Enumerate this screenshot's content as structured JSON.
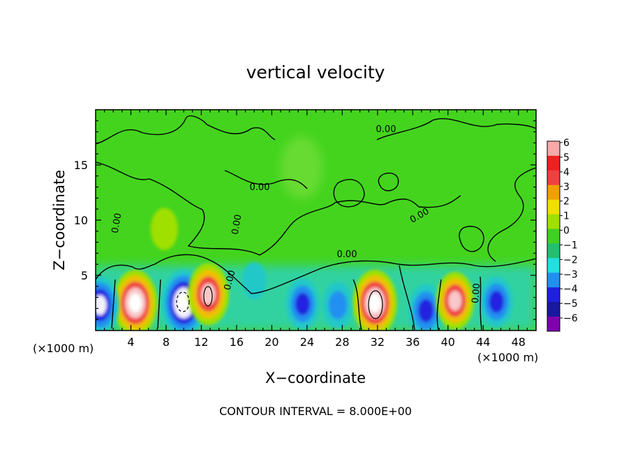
{
  "chart_data": {
    "type": "heatmap",
    "title": "vertical velocity",
    "xlabel": "X−coordinate",
    "ylabel": "Z−coordinate",
    "x_unit_left": "(×1000 m)",
    "x_unit_right": "(×1000 m)",
    "xlim": [
      0,
      50
    ],
    "ylim": [
      0,
      20
    ],
    "xticks": [
      4,
      8,
      12,
      16,
      20,
      24,
      28,
      32,
      36,
      40,
      44,
      48
    ],
    "yticks": [
      5,
      10,
      15
    ],
    "colorbar": {
      "levels": [
        6,
        5,
        4,
        3,
        2,
        1,
        0,
        -1,
        -2,
        -3,
        -4,
        -5,
        -6
      ],
      "labels": [
        "6",
        "5",
        "4",
        "3",
        "2",
        "1",
        "0",
        "−1",
        "−2",
        "−3",
        "−4",
        "−5",
        "−6"
      ],
      "colors": [
        "#f8a8a8",
        "#f02020",
        "#f04040",
        "#f0a000",
        "#f0e000",
        "#a0e000",
        "#40d020",
        "#20c070",
        "#20e0e0",
        "#2090f0",
        "#2020e0",
        "#1818a0",
        "#8000b0"
      ]
    },
    "contour_labels": [
      "0.00",
      "0.00",
      "0.00",
      "0.00",
      "0.00",
      "0.00",
      "0.00",
      "0.00"
    ],
    "footer": "CONTOUR INTERVAL = 8.000E+00",
    "features": [
      {
        "kind": "updraft",
        "x": 4.5,
        "z": 2.5,
        "peak": 8
      },
      {
        "kind": "downdraft",
        "x": 10,
        "z": 2.5,
        "peak": -8
      },
      {
        "kind": "updraft",
        "x": 12.8,
        "z": 3.3,
        "peak": 7
      },
      {
        "kind": "downdraft",
        "x": 0.5,
        "z": 2.3,
        "peak": -6
      },
      {
        "kind": "downdraft",
        "x": 23.5,
        "z": 2.4,
        "peak": -4.5
      },
      {
        "kind": "downdraft",
        "x": 27.5,
        "z": 2.3,
        "peak": -3.5
      },
      {
        "kind": "updraft",
        "x": 31.7,
        "z": 2.5,
        "peak": 8
      },
      {
        "kind": "downdraft",
        "x": 37.5,
        "z": 1.8,
        "peak": -5
      },
      {
        "kind": "updraft",
        "x": 40.8,
        "z": 2.7,
        "peak": 6
      },
      {
        "kind": "downdraft",
        "x": 45.5,
        "z": 2.6,
        "peak": -4.5
      },
      {
        "kind": "updraft",
        "x": 7.8,
        "z": 9.2,
        "peak": 2.5
      },
      {
        "kind": "downdraft",
        "x": 18,
        "z": 4.5,
        "peak": -1.5
      }
    ]
  }
}
